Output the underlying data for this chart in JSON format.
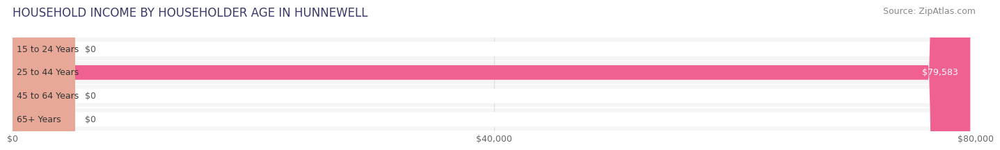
{
  "title": "HOUSEHOLD INCOME BY HOUSEHOLDER AGE IN HUNNEWELL",
  "source_text": "Source: ZipAtlas.com",
  "categories": [
    "15 to 24 Years",
    "25 to 44 Years",
    "45 to 64 Years",
    "65+ Years"
  ],
  "values": [
    0,
    79583,
    0,
    0
  ],
  "bar_colors": [
    "#aaaadd",
    "#f06090",
    "#e8c080",
    "#e8a898"
  ],
  "xlim": [
    0,
    80000
  ],
  "xticks": [
    0,
    40000,
    80000
  ],
  "xtick_labels": [
    "$0",
    "$40,000",
    "$80,000"
  ],
  "background_color": "#ffffff",
  "bar_bg_color": "#f0f0f0",
  "title_fontsize": 12,
  "source_fontsize": 9,
  "label_fontsize": 9,
  "tick_fontsize": 9,
  "grid_color": "#dddddd",
  "title_color": "#3a3a6a",
  "source_color": "#888888",
  "cat_label_color": "#333333",
  "value_label_color_inside": "#ffffff",
  "value_label_color_outside": "#555555",
  "row_bg_colors": [
    "#f5f5f5",
    "#f5f5f5",
    "#f5f5f5",
    "#f5f5f5"
  ]
}
